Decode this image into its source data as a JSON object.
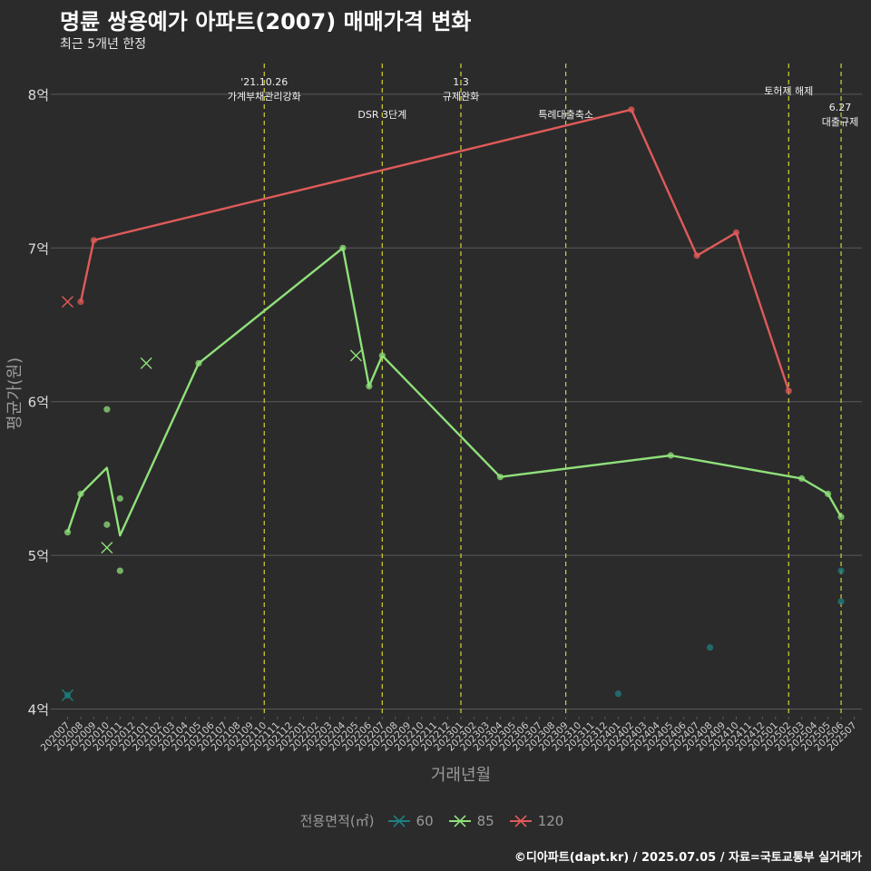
{
  "header": {
    "title": "명륜 쌍용예가 아파트(2007) 매매가격 변화",
    "subtitle": "최근 5개년 한정"
  },
  "caption": "©디아파트(dapt.kr) / 2025.07.05 / 자료=국토교통부 실거래가",
  "colors": {
    "background": "#2b2b2b",
    "grid": "#5a5a5a",
    "event_line": "#d4d433",
    "s60": "#1f7f80",
    "s85": "#8fe07a",
    "s120": "#e05a5a",
    "axis_text": "#9a9a9a"
  },
  "chart_data": {
    "type": "line",
    "title": "명륜 쌍용예가 아파트(2007) 매매가격 변화",
    "xlabel": "거래년월",
    "ylabel": "평균가(원)",
    "ylim": [
      3.95,
      8.2
    ],
    "yticks": [
      4,
      5,
      6,
      7,
      8
    ],
    "ytick_labels": [
      "4억",
      "5억",
      "6억",
      "7억",
      "8억"
    ],
    "categories": [
      "202007",
      "202008",
      "202009",
      "202010",
      "202011",
      "202012",
      "202101",
      "202102",
      "202103",
      "202104",
      "202105",
      "202106",
      "202107",
      "202108",
      "202109",
      "202110",
      "202111",
      "202112",
      "202201",
      "202202",
      "202203",
      "202204",
      "202205",
      "202206",
      "202207",
      "202208",
      "202209",
      "202210",
      "202211",
      "202212",
      "202301",
      "202302",
      "202303",
      "202304",
      "202305",
      "202306",
      "202307",
      "202308",
      "202309",
      "202310",
      "202311",
      "202312",
      "202401",
      "202402",
      "202403",
      "202404",
      "202405",
      "202406",
      "202407",
      "202408",
      "202409",
      "202410",
      "202411",
      "202412",
      "202501",
      "202502",
      "202503",
      "202504",
      "202505",
      "202506",
      "202507"
    ],
    "legend_title": "전용면적(㎡)",
    "series": [
      {
        "name": "60",
        "color_key": "s60",
        "line": [],
        "points": [
          {
            "x": "202007",
            "y": 4.09
          },
          {
            "x": "202401",
            "y": 4.1
          },
          {
            "x": "202408",
            "y": 4.4
          },
          {
            "x": "202506",
            "y": 4.9
          },
          {
            "x": "202506",
            "y": 4.7
          }
        ],
        "crosses": [
          {
            "x": "202007",
            "y": 4.09
          }
        ]
      },
      {
        "name": "85",
        "color_key": "s85",
        "line": [
          {
            "x": "202007",
            "y": 5.15
          },
          {
            "x": "202008",
            "y": 5.4
          },
          {
            "x": "202010",
            "y": 5.57
          },
          {
            "x": "202011",
            "y": 5.13
          },
          {
            "x": "202105",
            "y": 6.25
          },
          {
            "x": "202204",
            "y": 7.0
          },
          {
            "x": "202206",
            "y": 6.1
          },
          {
            "x": "202207",
            "y": 6.3
          },
          {
            "x": "202304",
            "y": 5.51
          },
          {
            "x": "202405",
            "y": 5.65
          },
          {
            "x": "202503",
            "y": 5.5
          },
          {
            "x": "202505",
            "y": 5.4
          },
          {
            "x": "202506",
            "y": 5.25
          }
        ],
        "points": [
          {
            "x": "202007",
            "y": 5.15
          },
          {
            "x": "202008",
            "y": 5.4
          },
          {
            "x": "202010",
            "y": 5.95
          },
          {
            "x": "202010",
            "y": 5.2
          },
          {
            "x": "202011",
            "y": 5.37
          },
          {
            "x": "202011",
            "y": 4.9
          },
          {
            "x": "202105",
            "y": 6.25
          },
          {
            "x": "202204",
            "y": 7.0
          },
          {
            "x": "202206",
            "y": 6.1
          },
          {
            "x": "202207",
            "y": 6.3
          },
          {
            "x": "202304",
            "y": 5.51
          },
          {
            "x": "202405",
            "y": 5.65
          },
          {
            "x": "202503",
            "y": 5.5
          },
          {
            "x": "202505",
            "y": 5.4
          },
          {
            "x": "202506",
            "y": 5.25
          }
        ],
        "crosses": [
          {
            "x": "202010",
            "y": 5.05
          },
          {
            "x": "202101",
            "y": 6.25
          },
          {
            "x": "202205",
            "y": 6.3
          }
        ]
      },
      {
        "name": "120",
        "color_key": "s120",
        "line": [
          {
            "x": "202008",
            "y": 6.65
          },
          {
            "x": "202009",
            "y": 7.05
          },
          {
            "x": "202402",
            "y": 7.9
          },
          {
            "x": "202407",
            "y": 6.95
          },
          {
            "x": "202410",
            "y": 7.1
          },
          {
            "x": "202502",
            "y": 6.07
          }
        ],
        "points": [
          {
            "x": "202008",
            "y": 6.65
          },
          {
            "x": "202009",
            "y": 7.05
          },
          {
            "x": "202402",
            "y": 7.9
          },
          {
            "x": "202407",
            "y": 6.95
          },
          {
            "x": "202410",
            "y": 7.1
          },
          {
            "x": "202502",
            "y": 6.07
          }
        ],
        "crosses": [
          {
            "x": "202007",
            "y": 6.65
          }
        ]
      }
    ],
    "events": [
      {
        "x": "202110",
        "lines": [
          "'21.10.26",
          "가계부채관리강화"
        ],
        "tier": "top"
      },
      {
        "x": "202207",
        "lines": [
          "DSR 3단계"
        ],
        "tier": "mid"
      },
      {
        "x": "202301",
        "lines": [
          "1.3",
          "규제완화"
        ],
        "tier": "top"
      },
      {
        "x": "202309",
        "lines": [
          "특례대출축소"
        ],
        "tier": "mid"
      },
      {
        "x": "202502",
        "lines": [
          "토허제 해제"
        ],
        "tier": "upper"
      },
      {
        "x": "202506",
        "lines": [
          "6.27",
          "대출규제"
        ],
        "tier": "low"
      }
    ]
  }
}
